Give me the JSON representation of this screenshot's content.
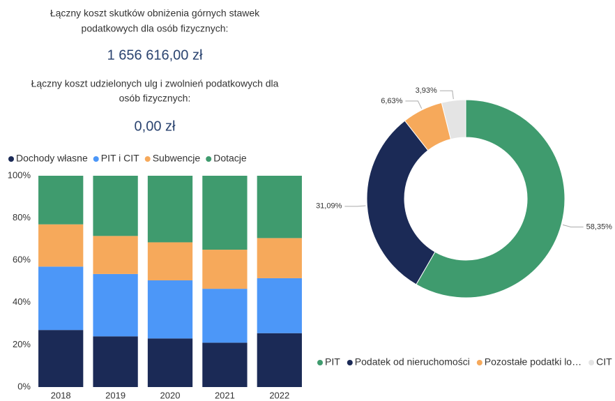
{
  "kpis": [
    {
      "label_lines": [
        "Łączny koszt skutków obniżenia górnych stawek",
        "podatkowych dla osób fizycznych:"
      ],
      "value": "1 656 616,00 zł"
    },
    {
      "label_lines": [
        "Łączny koszt udzielonych ulg i zwolnień podatkowych dla",
        "osób fizycznych:"
      ],
      "value": "0,00 zł"
    }
  ],
  "chart_data": [
    {
      "type": "stacked_bar",
      "categories": [
        "2018",
        "2019",
        "2020",
        "2021",
        "2022"
      ],
      "series": [
        {
          "name": "Dochody własne",
          "color": "#1b2a56",
          "values": [
            27,
            24,
            23,
            21,
            25.5
          ]
        },
        {
          "name": "PIT i CIT",
          "color": "#4c97f8",
          "values": [
            30,
            29.5,
            27.5,
            25.5,
            26
          ]
        },
        {
          "name": "Subwencje",
          "color": "#f6a95b",
          "values": [
            20,
            18,
            18,
            18.5,
            19
          ]
        },
        {
          "name": "Dotacje",
          "color": "#3f9b6e",
          "values": [
            23,
            28.5,
            31.5,
            35,
            29.5
          ]
        }
      ],
      "ylim": [
        0,
        100
      ],
      "yticks": [
        {
          "value": 0,
          "label": "0%"
        },
        {
          "value": 20,
          "label": "20%"
        },
        {
          "value": 40,
          "label": "40%"
        },
        {
          "value": 60,
          "label": "60%"
        },
        {
          "value": 80,
          "label": "80%"
        },
        {
          "value": 100,
          "label": "100%"
        }
      ],
      "legend": "top"
    },
    {
      "type": "donut",
      "categories": [
        "PIT",
        "Podatek od nieruchomości",
        "Pozostałe podatki lo…",
        "CIT"
      ],
      "values": [
        58.35,
        31.09,
        6.63,
        3.93
      ],
      "value_labels": [
        "58,35%",
        "31,09%",
        "6,63%",
        "3,93%"
      ],
      "colors": [
        "#3f9b6e",
        "#1b2a56",
        "#f6a95b",
        "#e4e4e4"
      ],
      "legend": "bottom"
    }
  ]
}
